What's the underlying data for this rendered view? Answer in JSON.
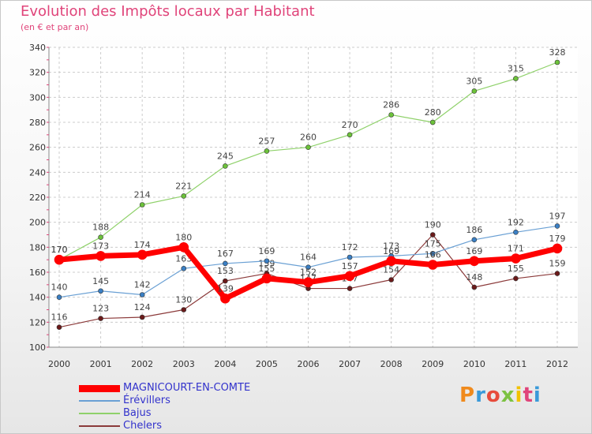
{
  "title": "Evolution des Impôts locaux par Habitant",
  "subtitle": "(en € et par an)",
  "brand": {
    "text": "Proxiti",
    "colors": [
      "#f08a1c",
      "#3a9ad9",
      "#e74c3c",
      "#7cc242",
      "#f2c200",
      "#e0447a",
      "#3a9ad9"
    ]
  },
  "chart_data": {
    "type": "line",
    "title": "Evolution des Impôts locaux par Habitant",
    "subtitle": "(en € et par an)",
    "xlabel": "",
    "ylabel": "",
    "categories": [
      "2000",
      "2001",
      "2002",
      "2003",
      "2004",
      "2005",
      "2006",
      "2007",
      "2008",
      "2009",
      "2010",
      "2011",
      "2012"
    ],
    "ylim": [
      100,
      340
    ],
    "yticks": [
      100,
      120,
      140,
      160,
      180,
      200,
      220,
      240,
      260,
      280,
      300,
      320,
      340
    ],
    "grid": true,
    "legend": "bottom-left",
    "series": [
      {
        "name": "Bajus",
        "color": "#8fd16a",
        "marker": "#6cc23a",
        "width": 1.2,
        "values": [
          170,
          188,
          214,
          221,
          245,
          257,
          260,
          270,
          286,
          280,
          305,
          315,
          328
        ]
      },
      {
        "name": "Chelers",
        "color": "#8b3a3a",
        "marker": "#6b1a1a",
        "width": 1.2,
        "values": [
          116,
          123,
          124,
          130,
          153,
          159,
          147,
          147,
          154,
          190,
          148,
          155,
          159
        ]
      },
      {
        "name": "Érévillers",
        "color": "#6aa0d4",
        "marker": "#3a7fc4",
        "width": 1.2,
        "values": [
          140,
          145,
          142,
          163,
          167,
          169,
          164,
          172,
          173,
          175,
          186,
          192,
          197
        ]
      },
      {
        "name": "MAGNICOURT-EN-COMTE",
        "color": "#ff0000",
        "marker": "#ff0000",
        "width": 7,
        "values": [
          170,
          173,
          174,
          180,
          139,
          155,
          152,
          157,
          169,
          166,
          169,
          171,
          179
        ]
      }
    ],
    "legend_order": [
      "MAGNICOURT-EN-COMTE",
      "Érévillers",
      "Bajus",
      "Chelers"
    ]
  }
}
